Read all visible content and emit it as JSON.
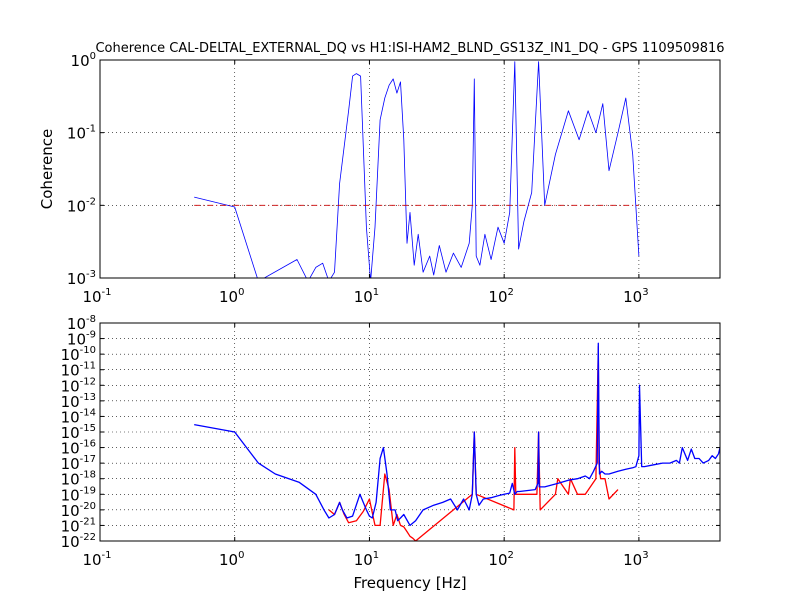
{
  "figure": {
    "title": "Coherence CAL-DELTAL_EXTERNAL_DQ vs H1:ISI-HAM2_BLND_GS13Z_IN1_DQ - GPS 1109509816"
  },
  "chart_data": [
    {
      "type": "line",
      "panel": "coherence",
      "ylabel": "Coherence",
      "xlabel": "",
      "xscale": "log",
      "yscale": "log",
      "xlim": [
        0.1,
        4000
      ],
      "ylim": [
        0.001,
        1
      ],
      "grid": true,
      "x_ticks": [
        {
          "base": "10",
          "exp": "-1",
          "value": 0.1
        },
        {
          "base": "10",
          "exp": "0",
          "value": 1
        },
        {
          "base": "10",
          "exp": "1",
          "value": 10
        },
        {
          "base": "10",
          "exp": "2",
          "value": 100
        },
        {
          "base": "10",
          "exp": "3",
          "value": 1000
        }
      ],
      "y_ticks": [
        {
          "base": "10",
          "exp": "-3",
          "value": 0.001
        },
        {
          "base": "10",
          "exp": "-2",
          "value": 0.01
        },
        {
          "base": "10",
          "exp": "-1",
          "value": 0.1
        },
        {
          "base": "10",
          "exp": "0",
          "value": 1
        }
      ],
      "series": [
        {
          "color": "#0000ff",
          "line": "solid",
          "x": [
            0.5,
            1.0,
            1.5,
            2.9,
            3.5,
            4.0,
            4.5,
            5.0,
            5.5,
            6.0,
            7.0,
            7.5,
            8.0,
            8.6,
            9.5,
            10.2,
            11.0,
            12.0,
            13.0,
            14.0,
            15.0,
            16.0,
            17.0,
            18.0,
            19.0,
            20.0,
            21.5,
            23.0,
            25.0,
            28.0,
            30.0,
            33.0,
            37.0,
            42.0,
            48.0,
            55.0,
            58.0,
            60.0,
            62.0,
            66.0,
            72.0,
            80.0,
            90.0,
            100.0,
            110.0,
            120.0,
            128.0,
            140.0,
            160.0,
            180.0,
            200.0,
            240.0,
            300.0,
            360.0,
            420.0,
            480.0,
            540.0,
            600.0,
            700.0,
            800.0,
            900.0,
            1000.0
          ],
          "y": [
            0.013,
            0.0095,
            0.0009,
            0.0018,
            0.0009,
            0.0014,
            0.0016,
            0.0009,
            0.0012,
            0.02,
            0.2,
            0.6,
            0.65,
            0.6,
            0.005,
            0.0009,
            0.005,
            0.15,
            0.3,
            0.45,
            0.55,
            0.35,
            0.5,
            0.08,
            0.003,
            0.008,
            0.0015,
            0.004,
            0.0012,
            0.002,
            0.0011,
            0.0028,
            0.0012,
            0.0022,
            0.0014,
            0.003,
            0.01,
            0.55,
            0.002,
            0.0015,
            0.004,
            0.0018,
            0.005,
            0.003,
            0.008,
            0.95,
            0.0025,
            0.006,
            0.015,
            0.95,
            0.01,
            0.05,
            0.2,
            0.08,
            0.2,
            0.1,
            0.25,
            0.03,
            0.1,
            0.3,
            0.05,
            0.002
          ]
        },
        {
          "color": "#cc0000",
          "line": "dashdot",
          "x": [
            0.5,
            1000.0
          ],
          "y": [
            0.01,
            0.01
          ]
        }
      ]
    },
    {
      "type": "line",
      "panel": "spectrum",
      "xlabel": "Frequency [Hz]",
      "ylabel": "",
      "xscale": "log",
      "yscale": "log",
      "xlim": [
        0.1,
        4000
      ],
      "ylim": [
        1e-22,
        1e-08
      ],
      "grid": true,
      "x_ticks": [
        {
          "base": "10",
          "exp": "-1",
          "value": 0.1
        },
        {
          "base": "10",
          "exp": "0",
          "value": 1
        },
        {
          "base": "10",
          "exp": "1",
          "value": 10
        },
        {
          "base": "10",
          "exp": "2",
          "value": 100
        },
        {
          "base": "10",
          "exp": "3",
          "value": 1000
        }
      ],
      "y_ticks": [
        {
          "base": "10",
          "exp": "-22",
          "value": 1e-22
        },
        {
          "base": "10",
          "exp": "-21",
          "value": 1e-21
        },
        {
          "base": "10",
          "exp": "-20",
          "value": 1e-20
        },
        {
          "base": "10",
          "exp": "-19",
          "value": 1e-19
        },
        {
          "base": "10",
          "exp": "-18",
          "value": 1e-18
        },
        {
          "base": "10",
          "exp": "-17",
          "value": 1e-17
        },
        {
          "base": "10",
          "exp": "-16",
          "value": 1e-16
        },
        {
          "base": "10",
          "exp": "-15",
          "value": 1e-15
        },
        {
          "base": "10",
          "exp": "-14",
          "value": 1e-14
        },
        {
          "base": "10",
          "exp": "-13",
          "value": 1e-13
        },
        {
          "base": "10",
          "exp": "-12",
          "value": 1e-12
        },
        {
          "base": "10",
          "exp": "-11",
          "value": 1e-11
        },
        {
          "base": "10",
          "exp": "-10",
          "value": 1e-10
        },
        {
          "base": "10",
          "exp": "-9",
          "value": 1e-09
        },
        {
          "base": "10",
          "exp": "-8",
          "value": 1e-08
        }
      ],
      "series": [
        {
          "color": "#ff0000",
          "x": [
            5.0,
            5.5,
            6.0,
            6.5,
            7.0,
            8.0,
            9.0,
            10.0,
            11.0,
            12.0,
            13.0,
            14.0,
            15.0,
            16.0,
            17.0,
            18.0,
            19.0,
            20.0,
            21.0,
            22.0,
            58.0,
            60.0,
            62.0,
            118.0,
            120.0,
            122.0,
            175.0,
            180.0,
            185.0,
            240.0,
            250.0,
            300.0,
            310.0,
            350.0,
            400.0,
            480.0,
            500.0,
            505.0,
            520.0,
            560.0,
            600.0,
            700.0
          ],
          "y": [
            1e-20,
            5e-21,
            3e-20,
            5e-21,
            1.5e-21,
            2e-21,
            8e-21,
            5e-20,
            1e-21,
            1e-21,
            2e-18,
            2e-19,
            1e-21,
            5e-21,
            1e-21,
            8e-22,
            4e-22,
            2e-22,
            1.5e-22,
            1e-22,
            1e-19,
            1e-15,
            1e-19,
            1e-20,
            1e-16,
            1e-19,
            1e-19,
            1e-15,
            1e-20,
            1e-19,
            1e-18,
            1e-19,
            1e-18,
            1e-19,
            1e-19,
            1e-18,
            3e-10,
            1e-17,
            1e-18,
            1e-18,
            5e-20,
            2e-19
          ]
        },
        {
          "color": "#0000ff",
          "x": [
            0.5,
            1.0,
            1.5,
            2.0,
            3.0,
            4.0,
            4.6,
            5.0,
            5.5,
            6.0,
            6.3,
            6.8,
            7.5,
            8.5,
            9.5,
            10.0,
            10.5,
            11.2,
            12.0,
            12.7,
            13.5,
            14.3,
            15.5,
            16.2,
            17.0,
            18.0,
            20.0,
            22.0,
            25.0,
            30.0,
            35.0,
            40.0,
            45.0,
            50.0,
            55.0,
            58.0,
            60.0,
            62.0,
            65.0,
            70.0,
            80.0,
            90.0,
            100.0,
            110.0,
            115.0,
            120.0,
            125.0,
            130.0,
            170.0,
            178.0,
            180.0,
            182.0,
            190.0,
            200.0,
            250.0,
            300.0,
            350.0,
            400.0,
            430.0,
            460.0,
            490.0,
            500.0,
            505.0,
            510.0,
            530.0,
            560.0,
            600.0,
            700.0,
            800.0,
            900.0,
            950.0,
            1000.0,
            1010.0,
            1050.0,
            1100.0,
            1300.0,
            1500.0,
            1700.0,
            1900.0,
            2000.0,
            2100.0,
            2300.0,
            2450.0,
            2600.0,
            2800.0,
            3000.0,
            3300.0,
            3500.0,
            3700.0,
            3900.0,
            4000.0
          ],
          "y": [
            3e-15,
            1e-15,
            1e-17,
            2e-18,
            6e-19,
            1e-19,
            1e-20,
            3e-21,
            5e-21,
            3e-20,
            1e-20,
            3e-21,
            4e-21,
            1e-19,
            1e-20,
            4e-21,
            3e-21,
            3e-20,
            2e-17,
            1e-16,
            2e-18,
            1e-20,
            1e-20,
            2e-21,
            3e-21,
            5e-21,
            1e-21,
            2e-21,
            1e-20,
            2e-20,
            3e-20,
            5e-20,
            1e-20,
            5e-20,
            1e-20,
            1e-19,
            1e-15,
            1e-19,
            2e-20,
            5e-20,
            6e-20,
            8e-20,
            1e-19,
            1.2e-19,
            5e-19,
            1e-19,
            1.5e-19,
            1.5e-19,
            2e-19,
            5e-19,
            1e-15,
            3e-19,
            3e-19,
            3e-19,
            5e-19,
            8e-19,
            1e-18,
            1.5e-18,
            1e-18,
            3e-18,
            1e-17,
            5e-10,
            1e-14,
            2e-18,
            3e-18,
            2e-18,
            2e-18,
            3e-18,
            4e-18,
            5e-18,
            6e-18,
            3e-17,
            1e-12,
            6e-18,
            6e-18,
            8e-18,
            1e-17,
            1e-17,
            1.5e-17,
            1e-17,
            1e-16,
            1.5e-17,
            8e-17,
            2e-17,
            2e-17,
            1e-17,
            1.5e-17,
            3e-17,
            2e-17,
            4e-17,
            1e-16
          ]
        }
      ]
    }
  ]
}
